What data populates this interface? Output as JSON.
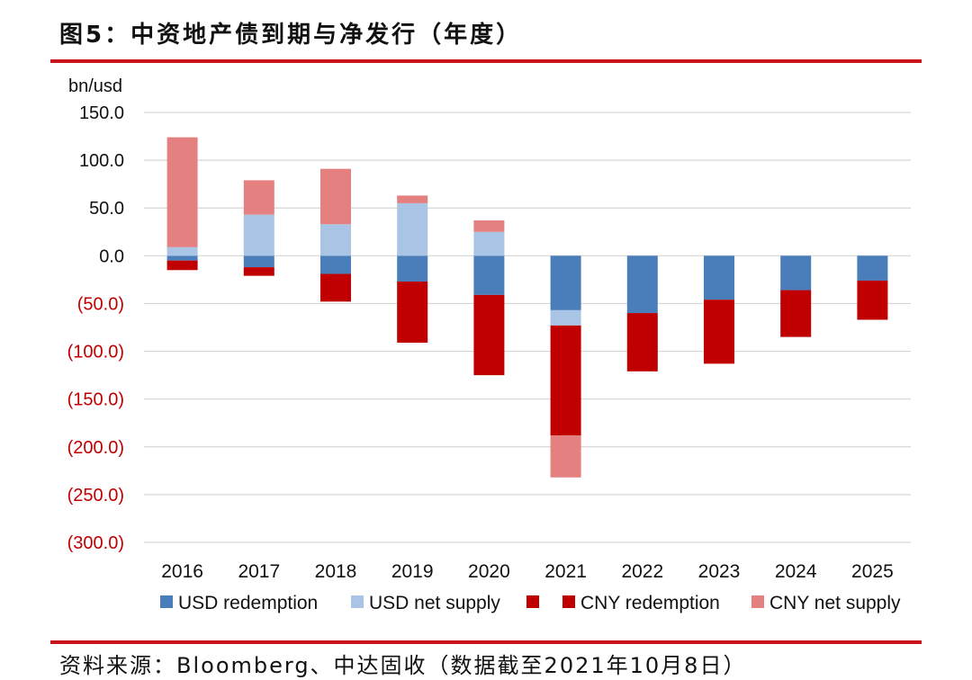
{
  "figure": {
    "title": "图5：中资地产债到期与净发行（年度）",
    "source": "资料来源：Bloomberg、中达固收（数据截至2021年10月8日）",
    "accent_color": "#c8141c"
  },
  "chart_data": {
    "type": "bar",
    "stacked": true,
    "title": "图5：中资地产债到期与净发行（年度）",
    "ylabel": "bn/usd",
    "xlabel": "",
    "ylim": [
      -300,
      150
    ],
    "yticks": [
      150,
      100,
      50,
      0,
      -50,
      -100,
      -150,
      -200,
      -250,
      -300
    ],
    "ytick_labels": [
      "150.0",
      "100.0",
      "50.0",
      "0.0",
      "(50.0)",
      "(100.0)",
      "(150.0)",
      "(200.0)",
      "(250.0)",
      "(300.0)"
    ],
    "positive_tick_color": "#111111",
    "negative_tick_color": "#c00000",
    "grid": true,
    "categories": [
      "2016",
      "2017",
      "2018",
      "2019",
      "2020",
      "2021",
      "2022",
      "2023",
      "2024",
      "2025"
    ],
    "series": [
      {
        "name": "USD redemption",
        "color": "#4a7ebb",
        "values": [
          -5,
          -12,
          -19,
          -27,
          -41,
          -57,
          -60,
          -46,
          -36,
          -26
        ]
      },
      {
        "name": "USD net supply",
        "color": "#a9c4e4",
        "values": [
          9,
          43,
          33,
          55,
          25,
          -16,
          0,
          0,
          0,
          0
        ]
      },
      {
        "name": "CNY redemption",
        "color": "#c00000",
        "values": [
          -10,
          -9,
          -29,
          -64,
          -84,
          -115,
          -61,
          -67,
          -49,
          -41
        ]
      },
      {
        "name": "CNY net supply",
        "color": "#e58080",
        "values": [
          115,
          36,
          58,
          8,
          12,
          -44,
          0,
          0,
          0,
          0
        ]
      }
    ],
    "legend": {
      "position": "bottom",
      "entries": [
        {
          "label": "USD redemption",
          "color": "#4a7ebb"
        },
        {
          "label": "USD net supply",
          "color": "#a9c4e4"
        },
        {
          "label": "",
          "color": "#c00000"
        },
        {
          "label": "CNY redemption",
          "color": "#c00000"
        },
        {
          "label": "CNY net supply",
          "color": "#e58080"
        }
      ]
    }
  }
}
